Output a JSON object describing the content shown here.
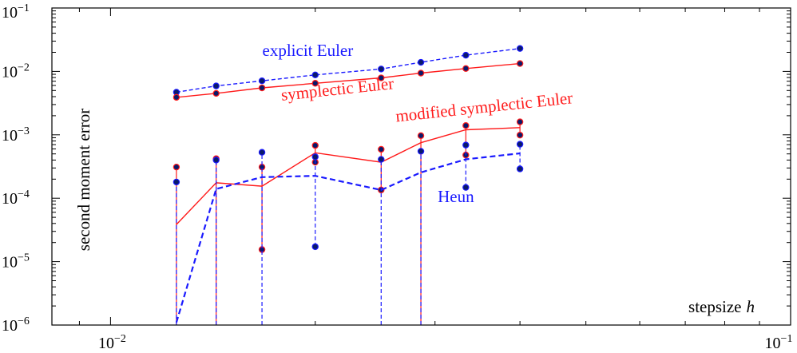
{
  "chart_data": {
    "type": "line",
    "title": "",
    "xlabel": "stepsize",
    "xlabel_symbol": "h",
    "ylabel": "second moment error",
    "x_scale": "log",
    "y_scale": "log",
    "xlim": [
      0.0082,
      0.1
    ],
    "ylim": [
      1e-06,
      0.1
    ],
    "grid": false,
    "legend": "none",
    "x_ticks": [
      {
        "base": "10",
        "exp": "−2"
      },
      {
        "base": "10",
        "exp": "−1"
      }
    ],
    "y_ticks": [
      {
        "base": "10",
        "exp": "−6"
      },
      {
        "base": "10",
        "exp": "−5"
      },
      {
        "base": "10",
        "exp": "−4"
      },
      {
        "base": "10",
        "exp": "−3"
      },
      {
        "base": "10",
        "exp": "−2"
      },
      {
        "base": "10",
        "exp": "−1"
      }
    ],
    "x": [
      0.0125,
      0.0143,
      0.0167,
      0.02,
      0.025,
      0.0286,
      0.0333,
      0.04
    ],
    "series": [
      {
        "name": "explicit Euler",
        "color": "#1a1aff",
        "dash": "5,3",
        "values": [
          0.0047,
          0.0059,
          0.0071,
          0.0088,
          0.0109,
          0.0139,
          0.018,
          0.023
        ],
        "low": [
          0.0047,
          0.0059,
          0.0071,
          0.0088,
          0.0109,
          0.0139,
          0.018,
          0.023
        ],
        "high": [
          0.0047,
          0.0059,
          0.0071,
          0.0088,
          0.0109,
          0.0139,
          0.018,
          0.023
        ],
        "label_pos": [
          0.0195,
          0.0175
        ],
        "label_anchor": "middle"
      },
      {
        "name": "symplectic Euler",
        "color": "#ff1a1a",
        "dash": "",
        "values": [
          0.0039,
          0.0045,
          0.0055,
          0.0065,
          0.0079,
          0.0094,
          0.0111,
          0.0133
        ],
        "low": [
          0.0039,
          0.0045,
          0.0055,
          0.0065,
          0.0079,
          0.0094,
          0.0111,
          0.0133
        ],
        "high": [
          0.0039,
          0.0045,
          0.0055,
          0.0065,
          0.0079,
          0.0094,
          0.0111,
          0.0133
        ],
        "label_pos": [
          0.0216,
          0.0043
        ],
        "label_anchor": "middle"
      },
      {
        "name": "modified symplectic Euler",
        "color": "#ff1a1a",
        "dash": "",
        "values": [
          3.85e-05,
          0.000175,
          0.000155,
          0.00052,
          0.00037,
          0.00075,
          0.0012,
          0.0013
        ],
        "low": [
          1e-06,
          1e-06,
          1.55e-05,
          0.00037,
          0.000135,
          1e-06,
          0.00048,
          0.00099
        ],
        "high": [
          0.00031,
          0.00042,
          0.00031,
          0.00068,
          0.00059,
          0.00097,
          0.0014,
          0.0016
        ],
        "label_pos": [
          0.0355,
          0.00225
        ],
        "label_anchor": "middle"
      },
      {
        "name": "Heun",
        "color": "#1a1aff",
        "dash": "7,4",
        "values": [
          1.1e-06,
          0.00014,
          0.000215,
          0.000225,
          0.000135,
          0.000255,
          0.00041,
          0.00051
        ],
        "low": [
          1e-06,
          1e-06,
          1e-06,
          1.72e-05,
          1e-06,
          1e-06,
          0.000148,
          0.00029
        ],
        "high": [
          0.00018,
          0.0004,
          0.00053,
          0.00045,
          0.00041,
          0.00055,
          0.00069,
          0.00071
        ],
        "label_pos": [
          0.0322,
          8.65e-05
        ],
        "label_anchor": "middle"
      }
    ]
  }
}
